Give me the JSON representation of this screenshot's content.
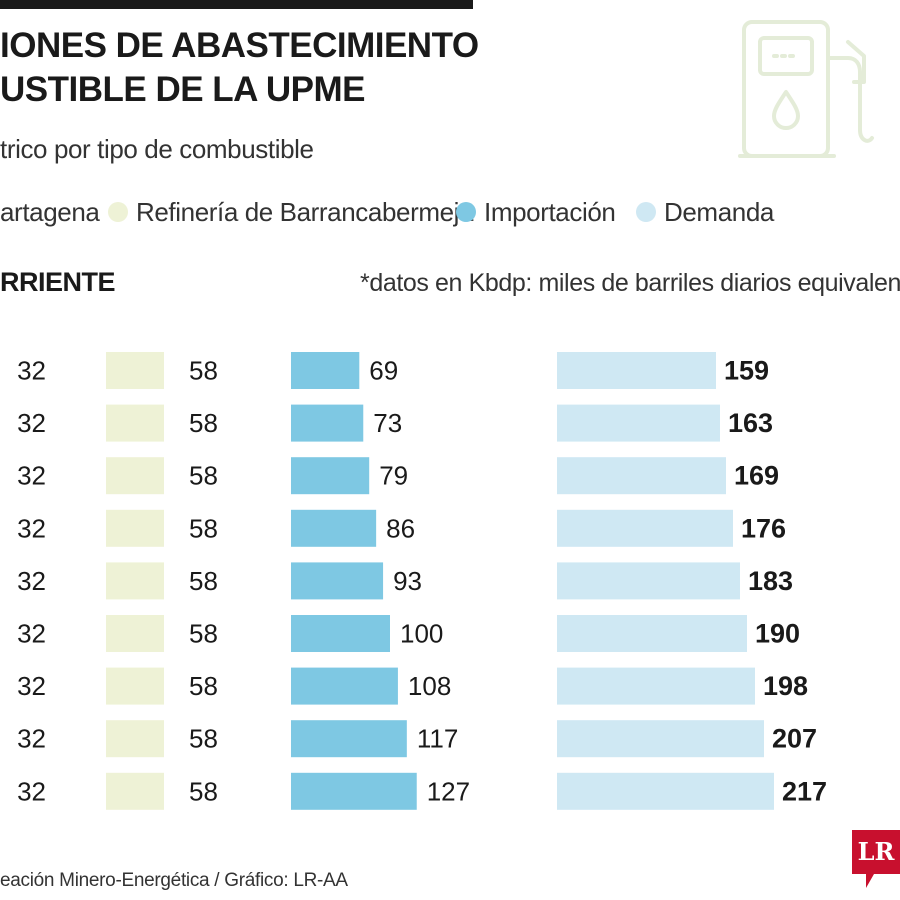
{
  "header": {
    "title_line1": "IONES DE ABASTECIMIENTO",
    "title_line2": "USTIBLE DE LA UPME",
    "subtitle": "trico por tipo de combustible",
    "pump_icon": "fuel-pump-icon"
  },
  "legend": [
    {
      "label": "artagena",
      "color": "#dce8b4",
      "left": 0
    },
    {
      "label": "Refinería de Barrancabermeja",
      "color": "#eef2d6"
    },
    {
      "label": "Importación",
      "color": "#7ec8e3"
    },
    {
      "label": "Demanda",
      "color": "#cfe8f3"
    }
  ],
  "section": {
    "title": "RRIENTE",
    "units_note": "*datos en Kbdp: miles de barriles diarios equivalentes"
  },
  "chart_data": {
    "type": "bar",
    "series": [
      {
        "values": [
          32,
          32,
          32,
          32,
          32,
          32,
          32,
          32,
          32
        ]
      },
      {
        "name": "Refinería de Barrancabermeja",
        "color": "#eef2d6",
        "values": [
          58,
          58,
          58,
          58,
          58,
          58,
          58,
          58,
          58
        ]
      },
      {
        "name": "Importación",
        "color": "#7ec8e3",
        "values": [
          69,
          73,
          79,
          86,
          93,
          100,
          108,
          117,
          127
        ]
      },
      {
        "name": "Demanda",
        "color": "#cfe8f3",
        "values": [
          159,
          163,
          169,
          176,
          183,
          190,
          198,
          207,
          217
        ]
      }
    ]
  },
  "footer": {
    "source": "eación Minero-Energética / Gráfico: LR-AA",
    "logo_text": "LR",
    "logo_color": "#c8102e"
  }
}
